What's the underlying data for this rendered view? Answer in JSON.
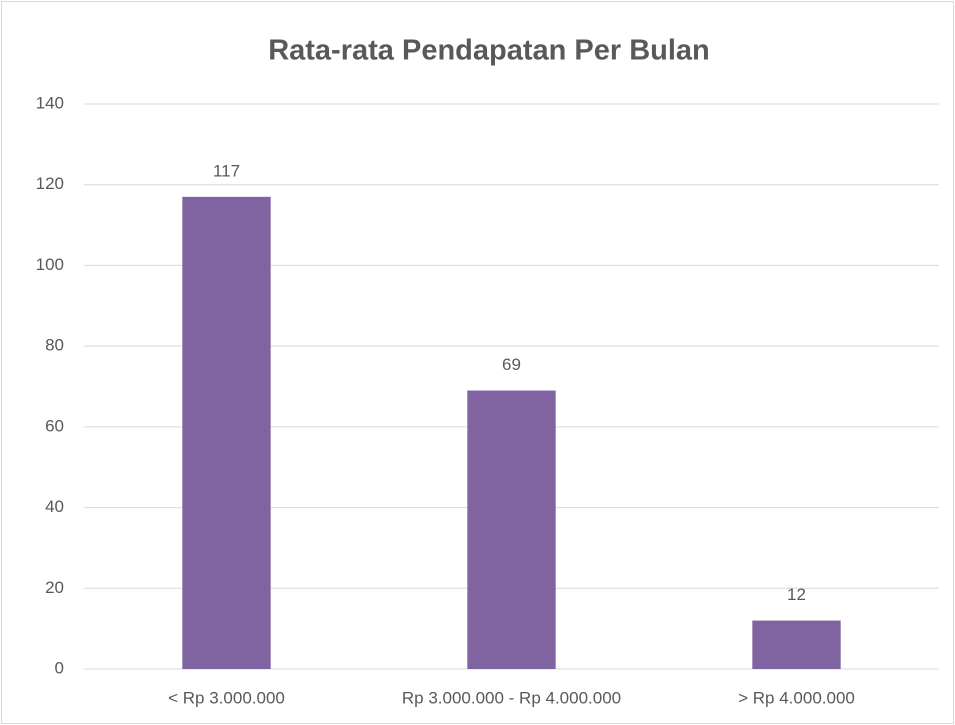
{
  "chart_data": {
    "type": "bar",
    "title": "Rata-rata Pendapatan Per Bulan",
    "categories": [
      "< Rp 3.000.000",
      "Rp 3.000.000 - Rp 4.000.000",
      "> Rp 4.000.000"
    ],
    "values": [
      117,
      69,
      12
    ],
    "color": "#8064a2",
    "ylim": [
      0,
      140
    ],
    "yticks": [
      0,
      20,
      40,
      60,
      80,
      100,
      120,
      140
    ],
    "grid": true
  }
}
